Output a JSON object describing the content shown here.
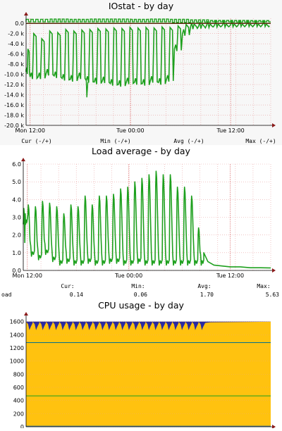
{
  "colors": {
    "background": "#ffffff",
    "panel_iostat": "#f7f7f7",
    "grid": "#e8a0a0",
    "axis": "#000000",
    "arrow": "#8b1a1a",
    "line_green": "#1ea01e",
    "line_dark": "#5a2a0a",
    "cpu_fill": "#ffc20f",
    "cpu_top": "#2a2aa0",
    "cpu_line": "#007090"
  },
  "chart_data": [
    {
      "type": "line",
      "title": "IOstat - by day",
      "ylim": [
        -20000,
        1000
      ],
      "y_ticks": [
        "0.0",
        "-2.0 k",
        "-4.0 k",
        "-6.0 k",
        "-8.0 k",
        "-10.0 k",
        "-12.0 k",
        "-14.0 k",
        "-16.0 k",
        "-18.0 k",
        "-20.0 k"
      ],
      "y_tick_values": [
        0,
        -2000,
        -4000,
        -6000,
        -8000,
        -10000,
        -12000,
        -14000,
        -16000,
        -18000,
        -20000
      ],
      "x_ticks": [
        "Mon 12:00",
        "Tue 00:00",
        "Tue 12:00"
      ],
      "x_tick_values": [
        0.0,
        0.5,
        1.0
      ],
      "xlim": [
        -0.02,
        1.2
      ],
      "legend": [
        "Cur (-/+)",
        "Min (-/+)",
        "Avg (-/+)",
        "Max (-/+)"
      ],
      "series": [
        {
          "color": "#1ea01e",
          "x": [
            -0.02,
            0.0,
            0.04,
            0.08,
            0.12,
            0.16,
            0.2,
            0.24,
            0.28,
            0.32,
            0.36,
            0.4,
            0.44,
            0.48,
            0.52,
            0.56,
            0.6,
            0.64,
            0.68,
            0.72,
            0.76,
            0.8,
            0.84,
            0.88,
            0.92,
            0.96,
            1.0,
            1.04,
            1.08,
            1.12,
            1.16,
            1.2
          ],
          "low": [
            -9500,
            -10500,
            -10500,
            -9800,
            -10300,
            -10800,
            -11000,
            -10500,
            -11200,
            -11500,
            -11300,
            -11800,
            -12000,
            -11500,
            -11600,
            -11800,
            -11200,
            -11600,
            -11000,
            -5000,
            -2000,
            -700,
            -600,
            -400,
            -300,
            -300,
            -250,
            -200,
            -200,
            -200,
            -200,
            -200
          ],
          "high": [
            -5000,
            -2000,
            -3000,
            -1500,
            -1800,
            -1200,
            -1500,
            -1300,
            -1200,
            -1000,
            -1100,
            -900,
            -1000,
            -800,
            -900,
            -800,
            -900,
            -700,
            -800,
            -500,
            -200,
            -100,
            -100,
            -100,
            -100,
            -100,
            -100,
            -100,
            -100,
            -100,
            -100,
            -100
          ]
        },
        {
          "color": "#1ea01e",
          "x": [
            -0.02,
            0.1,
            0.2,
            0.3,
            0.4,
            0.5,
            0.6,
            0.7,
            0.8,
            0.9,
            1.0,
            1.1,
            1.2
          ],
          "low": [
            300,
            300,
            300,
            300,
            300,
            300,
            300,
            200,
            250,
            300,
            250,
            300,
            300
          ],
          "high": [
            800,
            850,
            800,
            850,
            850,
            800,
            850,
            800,
            700,
            600,
            600,
            550,
            500
          ]
        },
        {
          "color": "#5a2a0a",
          "x": [
            -0.02,
            1.2
          ],
          "y": [
            0,
            0
          ]
        }
      ]
    },
    {
      "type": "line",
      "title": "Load average - by day",
      "ylim": [
        0,
        6
      ],
      "y_ticks": [
        "0.0",
        "1.0",
        "2.0",
        "3.0",
        "4.0",
        "5.0",
        "6.0"
      ],
      "y_tick_values": [
        0,
        1,
        2,
        3,
        4,
        5,
        6
      ],
      "x_ticks": [
        "Mon 12:00",
        "Tue 00:00",
        "Tue 12:00"
      ],
      "x_tick_values": [
        0.0,
        0.5,
        1.0
      ],
      "xlim": [
        -0.02,
        1.2
      ],
      "legend_labels": [
        "Cur:",
        "Min:",
        "Avg:",
        "Max:"
      ],
      "legend_row": {
        "name": "oad",
        "cur": "0.14",
        "min": "0.06",
        "avg": "1.70",
        "max": "5.63"
      },
      "series": [
        {
          "color": "#1ea01e",
          "cycles": [
            {
              "x": -0.02,
              "high": 3.5,
              "low": 2.6
            },
            {
              "x": 0.0,
              "high": 3.7,
              "low": 0.8
            },
            {
              "x": 0.035,
              "high": 3.6,
              "low": 0.6
            },
            {
              "x": 0.07,
              "high": 3.9,
              "low": 0.9
            },
            {
              "x": 0.105,
              "high": 3.8,
              "low": 0.5
            },
            {
              "x": 0.14,
              "high": 3.6,
              "low": 0.3
            },
            {
              "x": 0.175,
              "high": 3.2,
              "low": 0.4
            },
            {
              "x": 0.21,
              "high": 3.7,
              "low": 0.3
            },
            {
              "x": 0.245,
              "high": 3.6,
              "low": 0.3
            },
            {
              "x": 0.28,
              "high": 4.2,
              "low": 0.4
            },
            {
              "x": 0.315,
              "high": 3.7,
              "low": 0.3
            },
            {
              "x": 0.35,
              "high": 4.2,
              "low": 0.3
            },
            {
              "x": 0.385,
              "high": 4.2,
              "low": 0.4
            },
            {
              "x": 0.42,
              "high": 4.3,
              "low": 0.4
            },
            {
              "x": 0.455,
              "high": 4.6,
              "low": 0.3
            },
            {
              "x": 0.49,
              "high": 4.7,
              "low": 0.3
            },
            {
              "x": 0.525,
              "high": 5.0,
              "low": 0.4
            },
            {
              "x": 0.56,
              "high": 5.2,
              "low": 0.3
            },
            {
              "x": 0.595,
              "high": 5.4,
              "low": 0.3
            },
            {
              "x": 0.63,
              "high": 5.6,
              "low": 0.3
            },
            {
              "x": 0.665,
              "high": 5.4,
              "low": 0.3
            },
            {
              "x": 0.7,
              "high": 5.4,
              "low": 0.3
            },
            {
              "x": 0.735,
              "high": 4.7,
              "low": 0.3
            },
            {
              "x": 0.77,
              "high": 4.7,
              "low": 0.3
            },
            {
              "x": 0.805,
              "high": 4.2,
              "low": 0.3
            },
            {
              "x": 0.84,
              "high": 2.4,
              "low": 0.3
            }
          ],
          "tail": [
            [
              0.87,
              1.0
            ],
            [
              0.89,
              0.5
            ],
            [
              0.92,
              0.3
            ],
            [
              0.96,
              0.25
            ],
            [
              1.0,
              0.2
            ],
            [
              1.05,
              0.2
            ],
            [
              1.1,
              0.15
            ],
            [
              1.15,
              0.15
            ],
            [
              1.2,
              0.14
            ]
          ]
        }
      ]
    },
    {
      "type": "area",
      "title": "CPU usage - by day",
      "ylim": [
        0,
        1650
      ],
      "y_ticks": [
        "1600",
        "1400",
        "1200",
        "1000",
        "800",
        "600",
        "400",
        "200",
        "0"
      ],
      "y_tick_values": [
        1600,
        1400,
        1200,
        1000,
        800,
        600,
        400,
        200,
        0
      ],
      "x_ticks": [],
      "xlim": [
        -0.02,
        1.2
      ],
      "series": [
        {
          "color": "#ffc20f",
          "values": [
            1600
          ],
          "note_fill": "stacked area up to 1600"
        },
        {
          "color": "#2a2aa0",
          "values": [
            1600
          ],
          "note_fill": "top band"
        },
        {
          "color": "#007090",
          "values": [
            1280
          ]
        },
        {
          "color": "#1ea01e",
          "values": [
            470
          ]
        },
        {
          "color": "#2a6aa0",
          "values": [
            10
          ]
        }
      ]
    }
  ]
}
